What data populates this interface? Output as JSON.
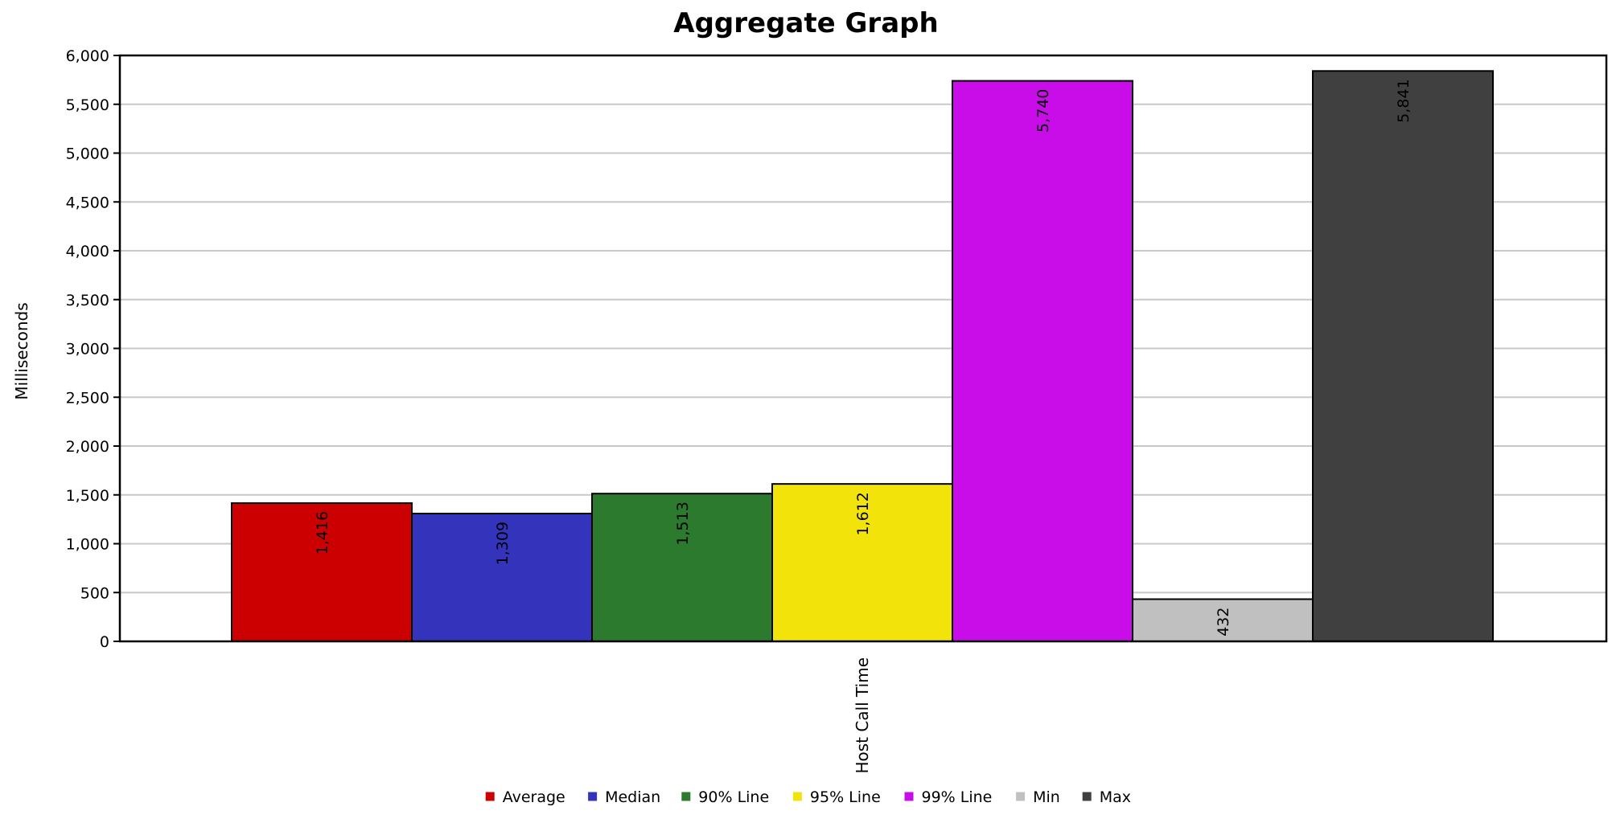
{
  "chart_data": {
    "type": "bar",
    "title": "Aggregate Graph",
    "xlabel": "",
    "ylabel": "Milliseconds",
    "categories": [
      "Host Call Time"
    ],
    "ylim": [
      0,
      6000
    ],
    "yticks": [
      0,
      500,
      1000,
      1500,
      2000,
      2500,
      3000,
      3500,
      4000,
      4500,
      5000,
      5500,
      6000
    ],
    "ytick_labels": [
      "0",
      "500",
      "1,000",
      "1,500",
      "2,000",
      "2,500",
      "3,000",
      "3,500",
      "4,000",
      "4,500",
      "5,000",
      "5,500",
      "6,000"
    ],
    "grid": true,
    "legend_position": "bottom",
    "series": [
      {
        "name": "Average",
        "values": [
          1416
        ],
        "label": "1,416",
        "color": "#cc0000"
      },
      {
        "name": "Median",
        "values": [
          1309
        ],
        "label": "1,309",
        "color": "#3333bb"
      },
      {
        "name": "90% Line",
        "values": [
          1513
        ],
        "label": "1,513",
        "color": "#2b7a2d"
      },
      {
        "name": "95% Line",
        "values": [
          1612
        ],
        "label": "1,612",
        "color": "#f2e40a"
      },
      {
        "name": "99% Line",
        "values": [
          5740
        ],
        "label": "5,740",
        "color": "#c80de8"
      },
      {
        "name": "Min",
        "values": [
          432
        ],
        "label": "432",
        "color": "#c0c0c0"
      },
      {
        "name": "Max",
        "values": [
          5841
        ],
        "label": "5,841",
        "color": "#404040"
      }
    ]
  }
}
